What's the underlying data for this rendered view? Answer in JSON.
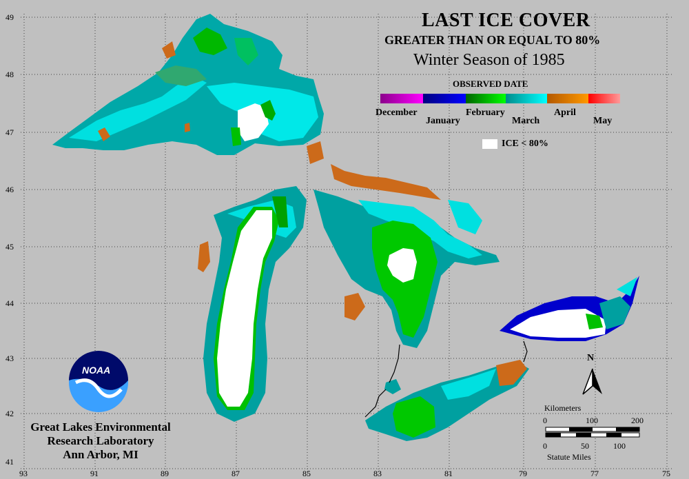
{
  "title": "LAST ICE COVER",
  "subtitle": "GREATER THAN OR EQUAL TO 80%",
  "season": "Winter Season of 1985",
  "legend": {
    "heading": "OBSERVED DATE",
    "months": [
      "December",
      "January",
      "February",
      "March",
      "April",
      "May"
    ],
    "segments": [
      {
        "month": "December",
        "colors": [
          "#8b008b",
          "#ff00ff"
        ]
      },
      {
        "month": "January",
        "colors": [
          "#000080",
          "#0000ff"
        ]
      },
      {
        "month": "February",
        "colors": [
          "#006400",
          "#00ff00"
        ]
      },
      {
        "month": "March",
        "colors": [
          "#008b8b",
          "#00ffff"
        ]
      },
      {
        "month": "April",
        "colors": [
          "#b35900",
          "#ff9900"
        ]
      },
      {
        "month": "May",
        "colors": [
          "#ff0000",
          "#ff9999"
        ]
      }
    ],
    "ice_lt_label": "ICE < 80%"
  },
  "colors": {
    "background": "#c0c0c0",
    "december": "#c000c0",
    "january": "#0000cc",
    "february": "#00cc00",
    "march_early": "#00a0a0",
    "march_late": "#00e8e8",
    "april": "#cc6a1a",
    "ice_lt_80": "#ffffff"
  },
  "latitude_labels": [
    "49",
    "48",
    "47",
    "46",
    "45",
    "44",
    "43",
    "42",
    "41"
  ],
  "longitude_labels": [
    "93",
    "91",
    "89",
    "87",
    "85",
    "83",
    "81",
    "79",
    "77",
    "75"
  ],
  "lab": {
    "logo_text": "NOAA",
    "line1": "Great Lakes Environmental",
    "line2": "Research Laboratory",
    "line3": "Ann Arbor, MI"
  },
  "scale": {
    "km_label": "Kilometers",
    "km_ticks": [
      "0",
      "100",
      "200"
    ],
    "mi_ticks": [
      "0",
      "50",
      "100"
    ],
    "mi_label": "Statute Miles"
  },
  "north_label": "N"
}
